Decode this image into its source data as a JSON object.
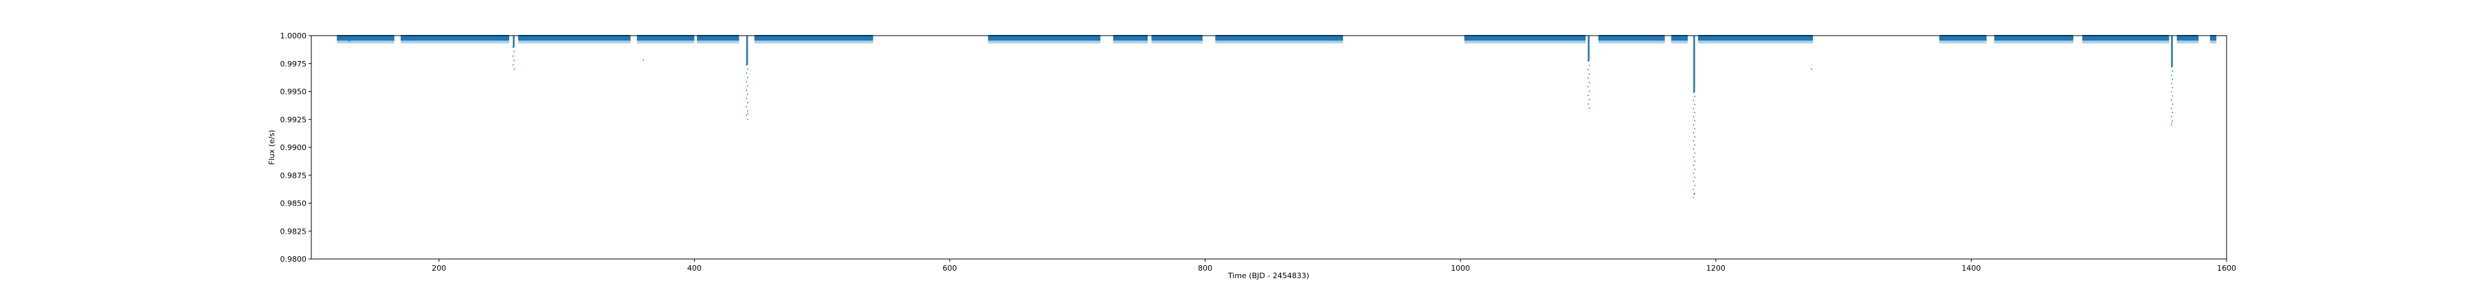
{
  "chart_data": {
    "type": "scatter",
    "title": "",
    "xlabel": "Time (BJD - 2454833)",
    "ylabel": "Flux (e/s)",
    "xlim": [
      100,
      1600
    ],
    "ylim": [
      0.98,
      1.0
    ],
    "xticks": [
      "200",
      "400",
      "600",
      "800",
      "1000",
      "1200",
      "1400",
      "1600"
    ],
    "yticks": [
      "0.9800",
      "0.9825",
      "0.9850",
      "0.9875",
      "0.9900",
      "0.9925",
      "0.9950",
      "0.9975",
      "1.0000"
    ],
    "series_color": "#1f77b4",
    "segments": [
      [
        120,
        165
      ],
      [
        170,
        255
      ],
      [
        262,
        350
      ],
      [
        355,
        400
      ],
      [
        402,
        435
      ],
      [
        447,
        540
      ],
      [
        630,
        718
      ],
      [
        728,
        755
      ],
      [
        758,
        798
      ],
      [
        808,
        908
      ],
      [
        1003,
        1098
      ],
      [
        1108,
        1160
      ],
      [
        1165,
        1178
      ],
      [
        1186,
        1276
      ],
      [
        1375,
        1412
      ],
      [
        1418,
        1480
      ],
      [
        1487,
        1555
      ],
      [
        1561,
        1578
      ],
      [
        1587,
        1592
      ]
    ],
    "transits": [
      {
        "x": 130,
        "depth": 0.0005
      },
      {
        "x": 258.5,
        "depth": 0.003
      },
      {
        "x": 441.3,
        "depth": 0.0075
      },
      {
        "x": 1100.4,
        "depth": 0.0065
      },
      {
        "x": 1183.0,
        "depth": 0.0145
      },
      {
        "x": 1557.2,
        "depth": 0.008
      }
    ],
    "outliers": [
      {
        "x": 360,
        "y": 0.9978
      },
      {
        "x": 442,
        "y": 0.993
      },
      {
        "x": 1183,
        "y": 0.9858
      },
      {
        "x": 1275,
        "y": 0.997
      },
      {
        "x": 1557,
        "y": 0.9922
      }
    ]
  }
}
